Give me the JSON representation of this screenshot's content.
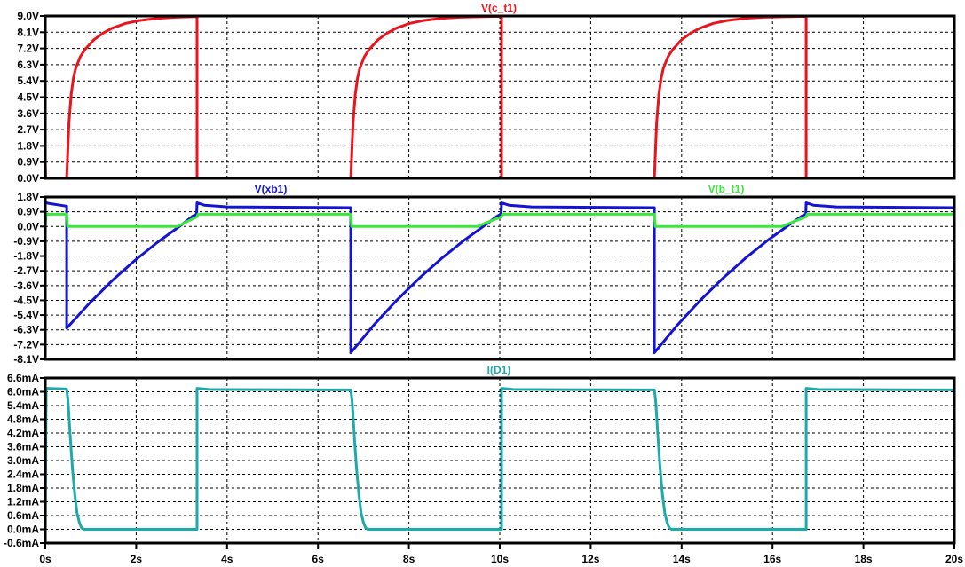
{
  "chart_data": [
    {
      "type": "line",
      "title": "V(c_t1)",
      "xlim": [
        0,
        20
      ],
      "ylim": [
        0,
        9.0
      ],
      "yticks": [
        "9.0V",
        "8.1V",
        "7.2V",
        "6.3V",
        "5.4V",
        "4.5V",
        "3.6V",
        "2.7V",
        "1.8V",
        "0.9V",
        "0.0V"
      ],
      "grid": true,
      "series": [
        {
          "name": "V(c_t1)",
          "color": "#e8141e",
          "points": [
            [
              0,
              0.9
            ],
            [
              0.01,
              0
            ],
            [
              0.47,
              0
            ],
            [
              0.52,
              3.04
            ],
            [
              0.57,
              4.66
            ],
            [
              0.62,
              5.56
            ],
            [
              0.67,
              6.11
            ],
            [
              0.77,
              6.74
            ],
            [
              0.87,
              7.13
            ],
            [
              1.07,
              7.68
            ],
            [
              1.27,
              8.05
            ],
            [
              1.47,
              8.32
            ],
            [
              1.77,
              8.59
            ],
            [
              2.07,
              8.75
            ],
            [
              2.47,
              8.87
            ],
            [
              2.87,
              8.93
            ],
            [
              3.34,
              8.97
            ],
            [
              3.34,
              0
            ],
            [
              6.72,
              0
            ],
            [
              6.77,
              3.04
            ],
            [
              6.82,
              4.66
            ],
            [
              6.87,
              5.56
            ],
            [
              6.92,
              6.11
            ],
            [
              7.02,
              6.74
            ],
            [
              7.12,
              7.13
            ],
            [
              7.32,
              7.68
            ],
            [
              7.52,
              8.05
            ],
            [
              7.72,
              8.32
            ],
            [
              8.02,
              8.59
            ],
            [
              8.32,
              8.75
            ],
            [
              8.72,
              8.87
            ],
            [
              9.12,
              8.93
            ],
            [
              9.6,
              8.96
            ],
            [
              10.04,
              8.98
            ],
            [
              10.04,
              0
            ],
            [
              13.4,
              0
            ],
            [
              13.45,
              3.04
            ],
            [
              13.5,
              4.66
            ],
            [
              13.55,
              5.56
            ],
            [
              13.6,
              6.11
            ],
            [
              13.7,
              6.74
            ],
            [
              13.8,
              7.13
            ],
            [
              14.0,
              7.68
            ],
            [
              14.2,
              8.05
            ],
            [
              14.4,
              8.32
            ],
            [
              14.7,
              8.59
            ],
            [
              15.0,
              8.75
            ],
            [
              15.4,
              8.87
            ],
            [
              15.8,
              8.93
            ],
            [
              16.3,
              8.96
            ],
            [
              16.74,
              8.98
            ],
            [
              16.74,
              0
            ],
            [
              20,
              0
            ]
          ]
        }
      ]
    },
    {
      "type": "line",
      "title": "",
      "xlim": [
        0,
        20
      ],
      "ylim": [
        -8.1,
        1.8
      ],
      "yticks": [
        "1.8V",
        "0.9V",
        "0.0V",
        "-0.9V",
        "-1.8V",
        "-2.7V",
        "-3.6V",
        "-4.5V",
        "-5.4V",
        "-6.3V",
        "-7.2V",
        "-8.1V"
      ],
      "grid": true,
      "series": [
        {
          "name": "V(xb1)",
          "color": "#1414d2",
          "points": [
            [
              0,
              1.5
            ],
            [
              0.05,
              1.42
            ],
            [
              0.45,
              1.25
            ],
            [
              0.47,
              1.25
            ],
            [
              0.47,
              -6.2
            ],
            [
              0.97,
              -4.68
            ],
            [
              1.47,
              -3.3
            ],
            [
              1.97,
              -2.07
            ],
            [
              2.47,
              -0.96
            ],
            [
              2.97,
              0.04
            ],
            [
              3.25,
              0.65
            ],
            [
              3.33,
              0.75
            ],
            [
              3.34,
              1.45
            ],
            [
              3.5,
              1.3
            ],
            [
              4.0,
              1.2
            ],
            [
              6.72,
              1.15
            ],
            [
              6.72,
              -7.7
            ],
            [
              7.22,
              -6.03
            ],
            [
              7.72,
              -4.53
            ],
            [
              8.22,
              -3.17
            ],
            [
              8.72,
              -1.94
            ],
            [
              9.22,
              -0.83
            ],
            [
              9.72,
              0.17
            ],
            [
              9.95,
              0.65
            ],
            [
              10.03,
              0.75
            ],
            [
              10.04,
              1.45
            ],
            [
              10.2,
              1.3
            ],
            [
              10.7,
              1.2
            ],
            [
              13.4,
              1.15
            ],
            [
              13.4,
              -7.7
            ],
            [
              13.9,
              -6.03
            ],
            [
              14.4,
              -4.53
            ],
            [
              14.9,
              -3.17
            ],
            [
              15.4,
              -1.94
            ],
            [
              15.9,
              -0.83
            ],
            [
              16.4,
              0.17
            ],
            [
              16.65,
              0.65
            ],
            [
              16.73,
              0.75
            ],
            [
              16.74,
              1.45
            ],
            [
              16.9,
              1.3
            ],
            [
              17.4,
              1.2
            ],
            [
              20,
              1.15
            ]
          ]
        },
        {
          "name": "V(b_t1)",
          "color": "#3ce63c",
          "points": [
            [
              0,
              0
            ],
            [
              0.02,
              0.75
            ],
            [
              0.47,
              0.75
            ],
            [
              0.49,
              0
            ],
            [
              2.9,
              0
            ],
            [
              3.34,
              0.6
            ],
            [
              3.36,
              0.75
            ],
            [
              6.72,
              0.75
            ],
            [
              6.74,
              0
            ],
            [
              9.5,
              0
            ],
            [
              10.04,
              0.6
            ],
            [
              10.06,
              0.75
            ],
            [
              13.4,
              0.75
            ],
            [
              13.42,
              0
            ],
            [
              16.2,
              0
            ],
            [
              16.74,
              0.6
            ],
            [
              16.76,
              0.75
            ],
            [
              20,
              0.75
            ]
          ]
        }
      ]
    },
    {
      "type": "line",
      "title": "I(D1)",
      "xlim": [
        0,
        20
      ],
      "ylim": [
        -0.6,
        6.6
      ],
      "yticks": [
        "6.6mA",
        "6.0mA",
        "5.4mA",
        "4.8mA",
        "4.2mA",
        "3.6mA",
        "3.0mA",
        "2.4mA",
        "1.8mA",
        "1.2mA",
        "0.6mA",
        "0.0mA",
        "-0.6mA"
      ],
      "grid": true,
      "series": [
        {
          "name": "I(D1)",
          "color": "#1eaaaa",
          "points": [
            [
              0,
              0
            ],
            [
              0.02,
              6.15
            ],
            [
              0.47,
              6.12
            ],
            [
              0.5,
              5.6
            ],
            [
              0.55,
              4.0
            ],
            [
              0.6,
              2.6
            ],
            [
              0.65,
              1.5
            ],
            [
              0.7,
              0.7
            ],
            [
              0.75,
              0.3
            ],
            [
              0.8,
              0.05
            ],
            [
              0.85,
              0
            ],
            [
              3.34,
              0
            ],
            [
              3.34,
              6.15
            ],
            [
              3.6,
              6.1
            ],
            [
              6.72,
              6.08
            ],
            [
              6.75,
              5.6
            ],
            [
              6.8,
              4.0
            ],
            [
              6.85,
              2.6
            ],
            [
              6.9,
              1.5
            ],
            [
              6.95,
              0.7
            ],
            [
              7.0,
              0.3
            ],
            [
              7.05,
              0.05
            ],
            [
              7.1,
              0
            ],
            [
              10.04,
              0
            ],
            [
              10.04,
              6.15
            ],
            [
              10.3,
              6.1
            ],
            [
              13.4,
              6.08
            ],
            [
              13.43,
              5.6
            ],
            [
              13.48,
              4.0
            ],
            [
              13.53,
              2.6
            ],
            [
              13.58,
              1.5
            ],
            [
              13.63,
              0.7
            ],
            [
              13.68,
              0.3
            ],
            [
              13.73,
              0.05
            ],
            [
              13.78,
              0
            ],
            [
              16.74,
              0
            ],
            [
              16.74,
              6.15
            ],
            [
              17.0,
              6.1
            ],
            [
              20,
              6.08
            ]
          ]
        }
      ]
    }
  ],
  "x_axis": {
    "ticks": [
      "0s",
      "2s",
      "4s",
      "6s",
      "8s",
      "10s",
      "12s",
      "14s",
      "16s",
      "18s",
      "20s"
    ]
  }
}
